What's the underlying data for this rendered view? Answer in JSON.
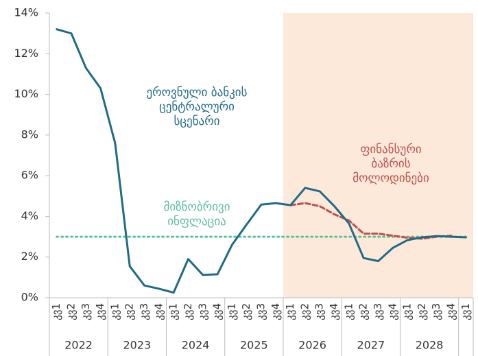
{
  "chart_data": {
    "type": "line",
    "categories": [
      "კვ1",
      "კვ2",
      "კვ3",
      "კვ4",
      "კვ1",
      "კვ2",
      "კვ3",
      "კვ4",
      "კვ1",
      "კვ2",
      "კვ3",
      "კვ4",
      "კვ1",
      "კვ2",
      "კვ3",
      "კვ4",
      "კვ1",
      "კვ2",
      "კვ3",
      "კვ4",
      "კვ1",
      "კვ2",
      "კვ3",
      "კვ4",
      "კვ1",
      "კვ2",
      "კვ3",
      "კვ4",
      "კვ1"
    ],
    "years": [
      "2022",
      "2023",
      "2024",
      "2025",
      "2026",
      "2027",
      "2028"
    ],
    "series": [
      {
        "name": "ეროვნული ბანკის ცენტრალური სცენარი",
        "color": "#1f6b87",
        "style": "solid",
        "values": [
          13.2,
          13.0,
          11.3,
          10.3,
          7.6,
          1.55,
          0.6,
          0.44,
          0.25,
          1.9,
          1.12,
          1.15,
          2.6,
          3.6,
          4.58,
          4.65,
          4.55,
          5.4,
          5.23,
          4.5,
          3.65,
          1.95,
          1.8,
          2.45,
          2.83,
          2.97,
          3.03,
          3.0,
          2.97
        ]
      },
      {
        "name": "ფინანსური ბაზრის მოლოდინები",
        "color": "#c0504d",
        "style": "dashed",
        "values": [
          null,
          null,
          null,
          null,
          null,
          null,
          null,
          null,
          null,
          null,
          null,
          null,
          null,
          null,
          null,
          null,
          4.55,
          4.65,
          4.5,
          4.1,
          3.8,
          3.15,
          3.15,
          3.05,
          2.95,
          2.9,
          3.0,
          3.05,
          null
        ]
      },
      {
        "name": "მიზნობრივი ინფლაცია",
        "color": "#5fbf9a",
        "style": "dotted",
        "values": [
          3,
          3,
          3,
          3,
          3,
          3,
          3,
          3,
          3,
          3,
          3,
          3,
          3,
          3,
          3,
          3,
          3,
          3,
          3,
          3,
          3,
          3,
          3,
          3,
          3,
          3,
          3,
          3,
          3
        ]
      }
    ],
    "annotations": [
      {
        "lines": [
          "ეროვნული ბანკის",
          "ცენტრალური",
          "სცენარი"
        ],
        "color": "#1f6b87"
      },
      {
        "lines": [
          "ფინანსური",
          "ბაზრის",
          "მოლოდინები"
        ],
        "color": "#c0504d"
      },
      {
        "lines": [
          "მიზნობრივი",
          "ინფლაცია"
        ],
        "color": "#5fbf9a"
      }
    ],
    "forecast_shade": "#fde9d9",
    "ylim": [
      0,
      14
    ],
    "yticks": [
      {
        "value": 0,
        "label": "0%"
      },
      {
        "value": 2,
        "label": "2%"
      },
      {
        "value": 4,
        "label": "4%"
      },
      {
        "value": 6,
        "label": "6%"
      },
      {
        "value": 8,
        "label": "8%"
      },
      {
        "value": 10,
        "label": "10%"
      },
      {
        "value": 12,
        "label": "12%"
      },
      {
        "value": 14,
        "label": "14%"
      }
    ]
  }
}
